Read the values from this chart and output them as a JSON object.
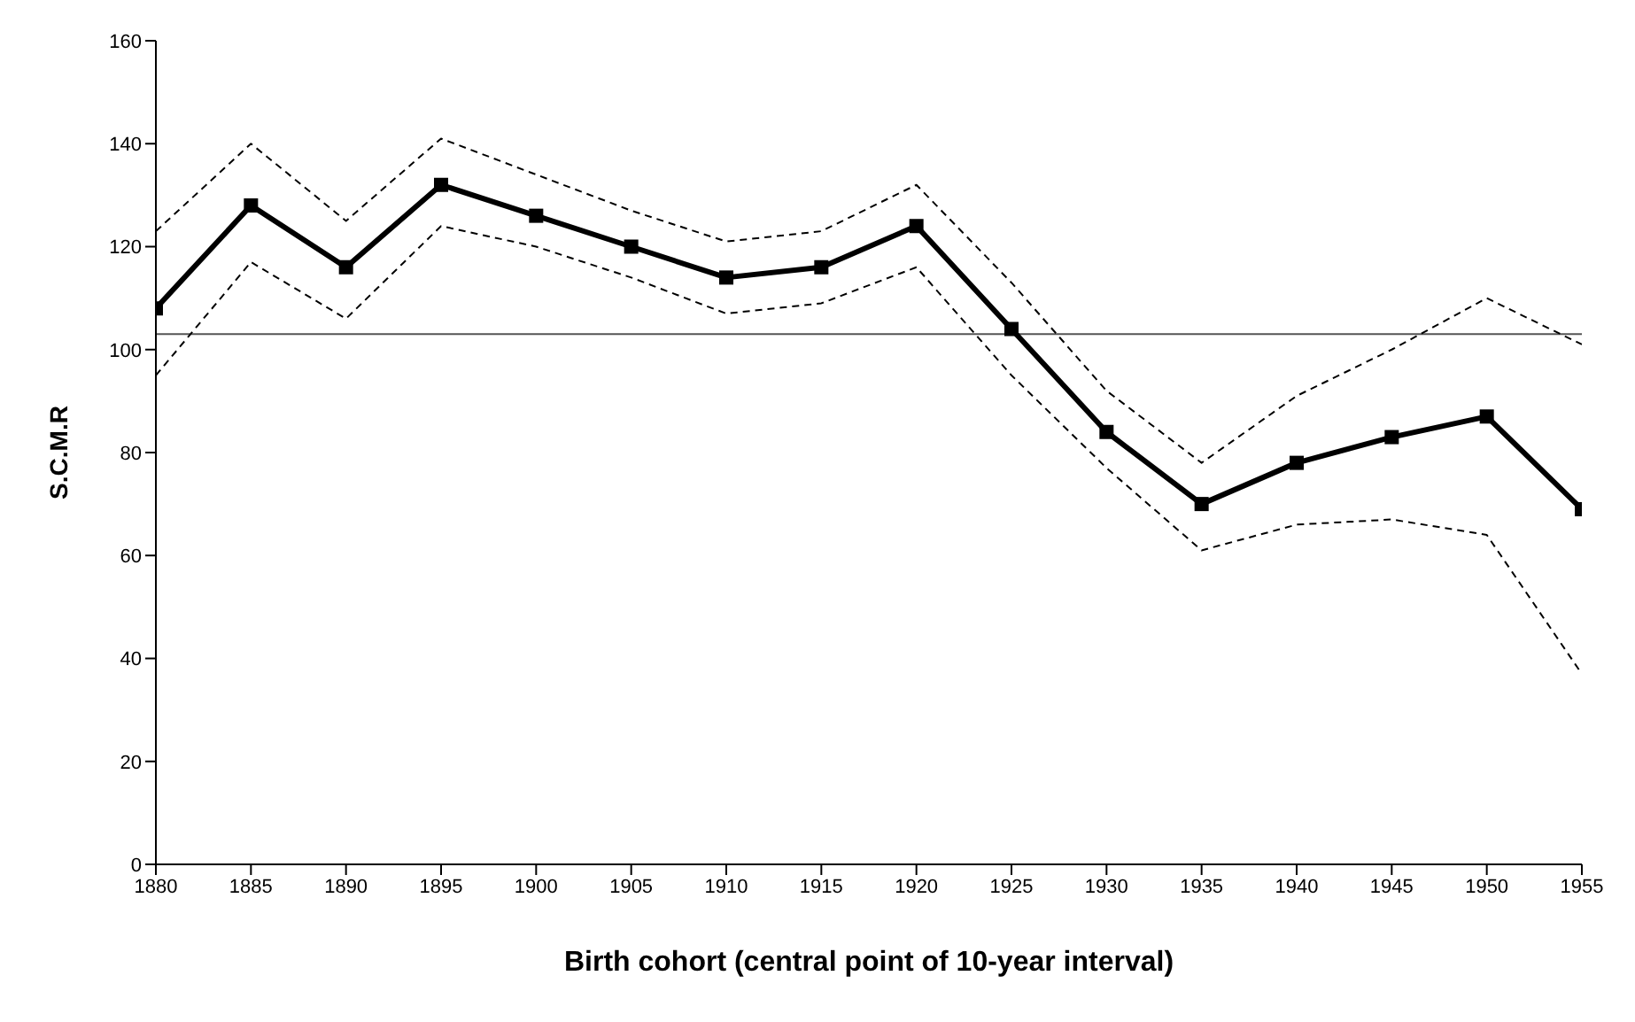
{
  "chart_data": {
    "type": "line",
    "xlabel": "Birth cohort (central point of 10-year interval)",
    "ylabel": "S.C.M.R",
    "x": [
      1880,
      1885,
      1890,
      1895,
      1900,
      1905,
      1910,
      1915,
      1920,
      1925,
      1930,
      1935,
      1940,
      1945,
      1950,
      1955
    ],
    "series": [
      {
        "color": "#000000",
        "values": [
          108,
          128,
          116,
          132,
          126,
          120,
          114,
          116,
          124,
          104,
          84,
          70,
          78,
          83,
          87,
          69
        ]
      },
      {
        "color": "#000000",
        "line_style": "dashed",
        "marker": "none",
        "values": [
          95,
          117,
          106,
          124,
          120,
          114,
          107,
          109,
          116,
          95,
          77,
          61,
          66,
          67,
          64,
          37
        ]
      },
      {
        "color": "#000000",
        "line_style": "dashed",
        "marker": "none",
        "values": [
          123,
          140,
          125,
          141,
          134,
          127,
          121,
          123,
          132,
          113,
          92,
          78,
          91,
          100,
          110,
          101
        ]
      }
    ],
    "xlim": [
      1880,
      1955
    ],
    "xticks": [
      1880,
      1885,
      1890,
      1895,
      1900,
      1905,
      1910,
      1915,
      1920,
      1925,
      1930,
      1935,
      1940,
      1945,
      1950,
      1955
    ],
    "ylim": [
      0,
      160
    ],
    "yticks": [
      0,
      20,
      40,
      60,
      80,
      100,
      120,
      140,
      160
    ],
    "ref_lines": [
      {
        "axis": "y",
        "value": 103,
        "color": "#555555",
        "line_style": "solid"
      }
    ],
    "marker": "square",
    "line_style": "solid",
    "grid": false,
    "legend": false
  }
}
